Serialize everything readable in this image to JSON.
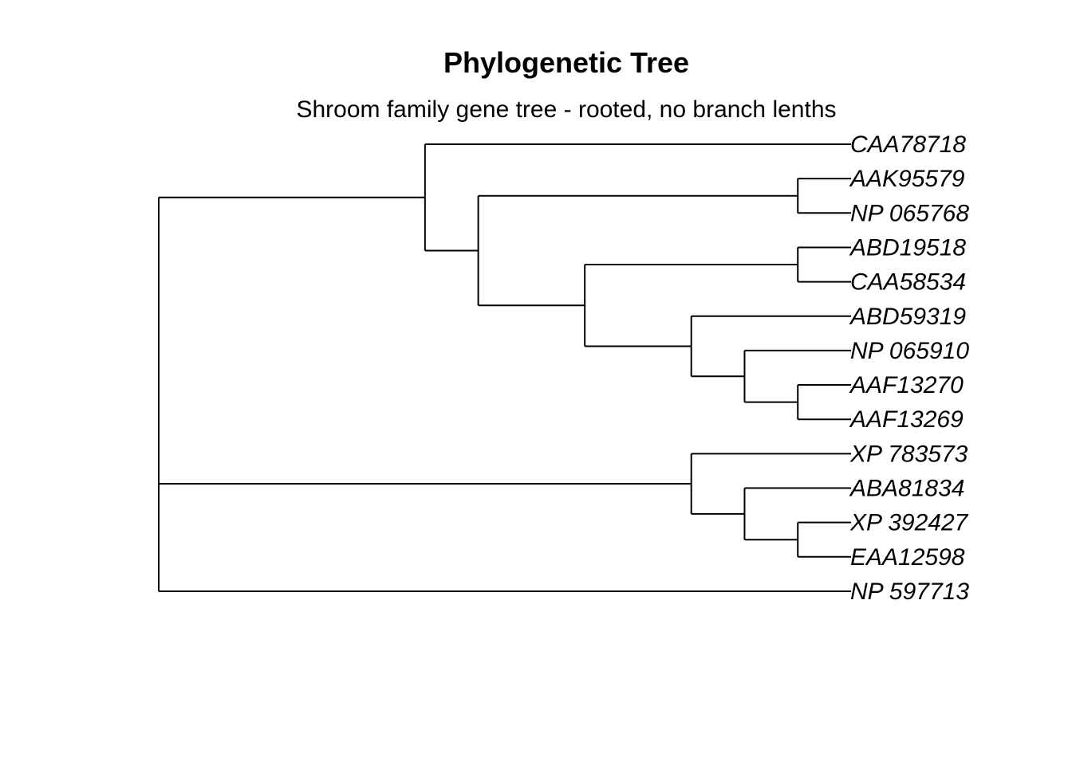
{
  "title": "Phylogenetic Tree",
  "subtitle": "Shroom family gene tree - rooted, no branch lenths",
  "line_color": "#000000",
  "tree": {
    "children": [
      {
        "children": [
          {
            "name": "CAA78718"
          },
          {
            "children": [
              {
                "children": [
                  {
                    "name": "AAK95579"
                  },
                  {
                    "name": "NP 065768"
                  }
                ]
              },
              {
                "children": [
                  {
                    "children": [
                      {
                        "name": "ABD19518"
                      },
                      {
                        "name": "CAA58534"
                      }
                    ]
                  },
                  {
                    "children": [
                      {
                        "name": "ABD59319"
                      },
                      {
                        "children": [
                          {
                            "name": "NP 065910"
                          },
                          {
                            "children": [
                              {
                                "name": "AAF13270"
                              },
                              {
                                "name": "AAF13269"
                              }
                            ]
                          }
                        ]
                      }
                    ]
                  }
                ]
              }
            ]
          }
        ]
      },
      {
        "children": [
          {
            "name": "XP 783573"
          },
          {
            "children": [
              {
                "name": "ABA81834"
              },
              {
                "children": [
                  {
                    "name": "XP 392427"
                  },
                  {
                    "name": "EAA12598"
                  }
                ]
              }
            ]
          }
        ]
      },
      {
        "name": "NP 597713"
      }
    ]
  }
}
